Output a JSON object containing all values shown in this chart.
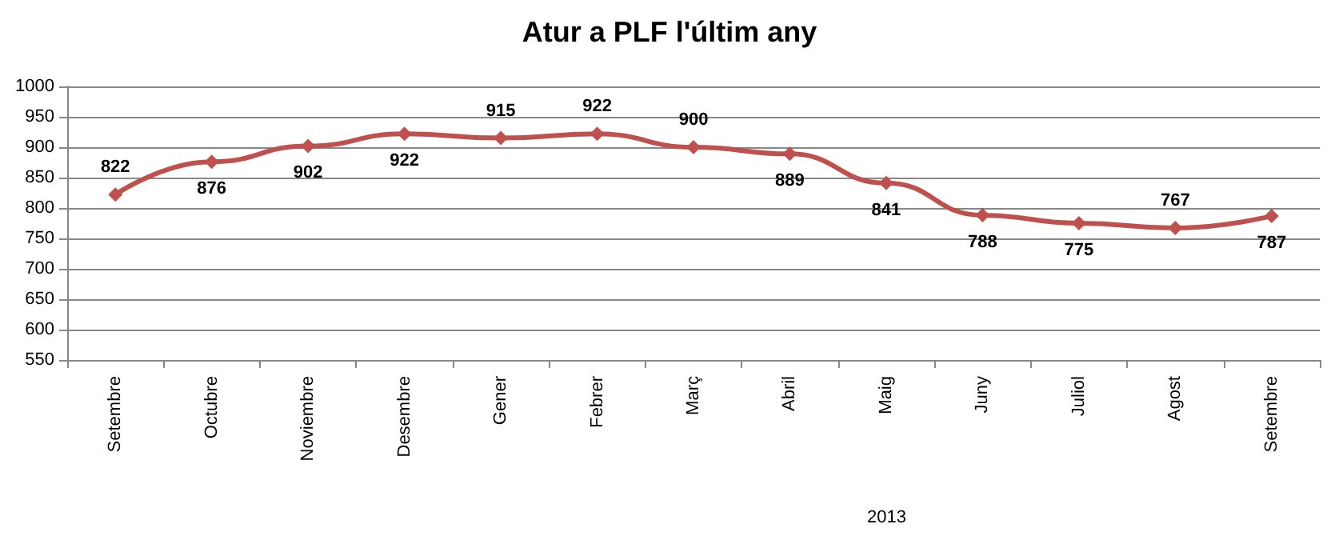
{
  "chart_data": {
    "type": "line",
    "title": "Atur a PLF l'últim any",
    "categories": [
      "Setembre",
      "Octubre",
      "Noviembre",
      "Desembre",
      "Gener",
      "Febrer",
      "Març",
      "Abril",
      "Maig",
      "Juny",
      "Juliol",
      "Agost",
      "Setembre"
    ],
    "series": [
      {
        "color": "#c0504d",
        "values": [
          822,
          876,
          902,
          922,
          915,
          922,
          900,
          889,
          841,
          788,
          775,
          767,
          787
        ]
      }
    ],
    "ylim": [
      550,
      1000
    ],
    "yticks": [
      550,
      600,
      650,
      700,
      750,
      800,
      850,
      900,
      950,
      1000
    ],
    "grid": "y",
    "marker": "diamond",
    "line_style": "solid",
    "data_labels": true,
    "annotations": [
      "2013"
    ]
  }
}
